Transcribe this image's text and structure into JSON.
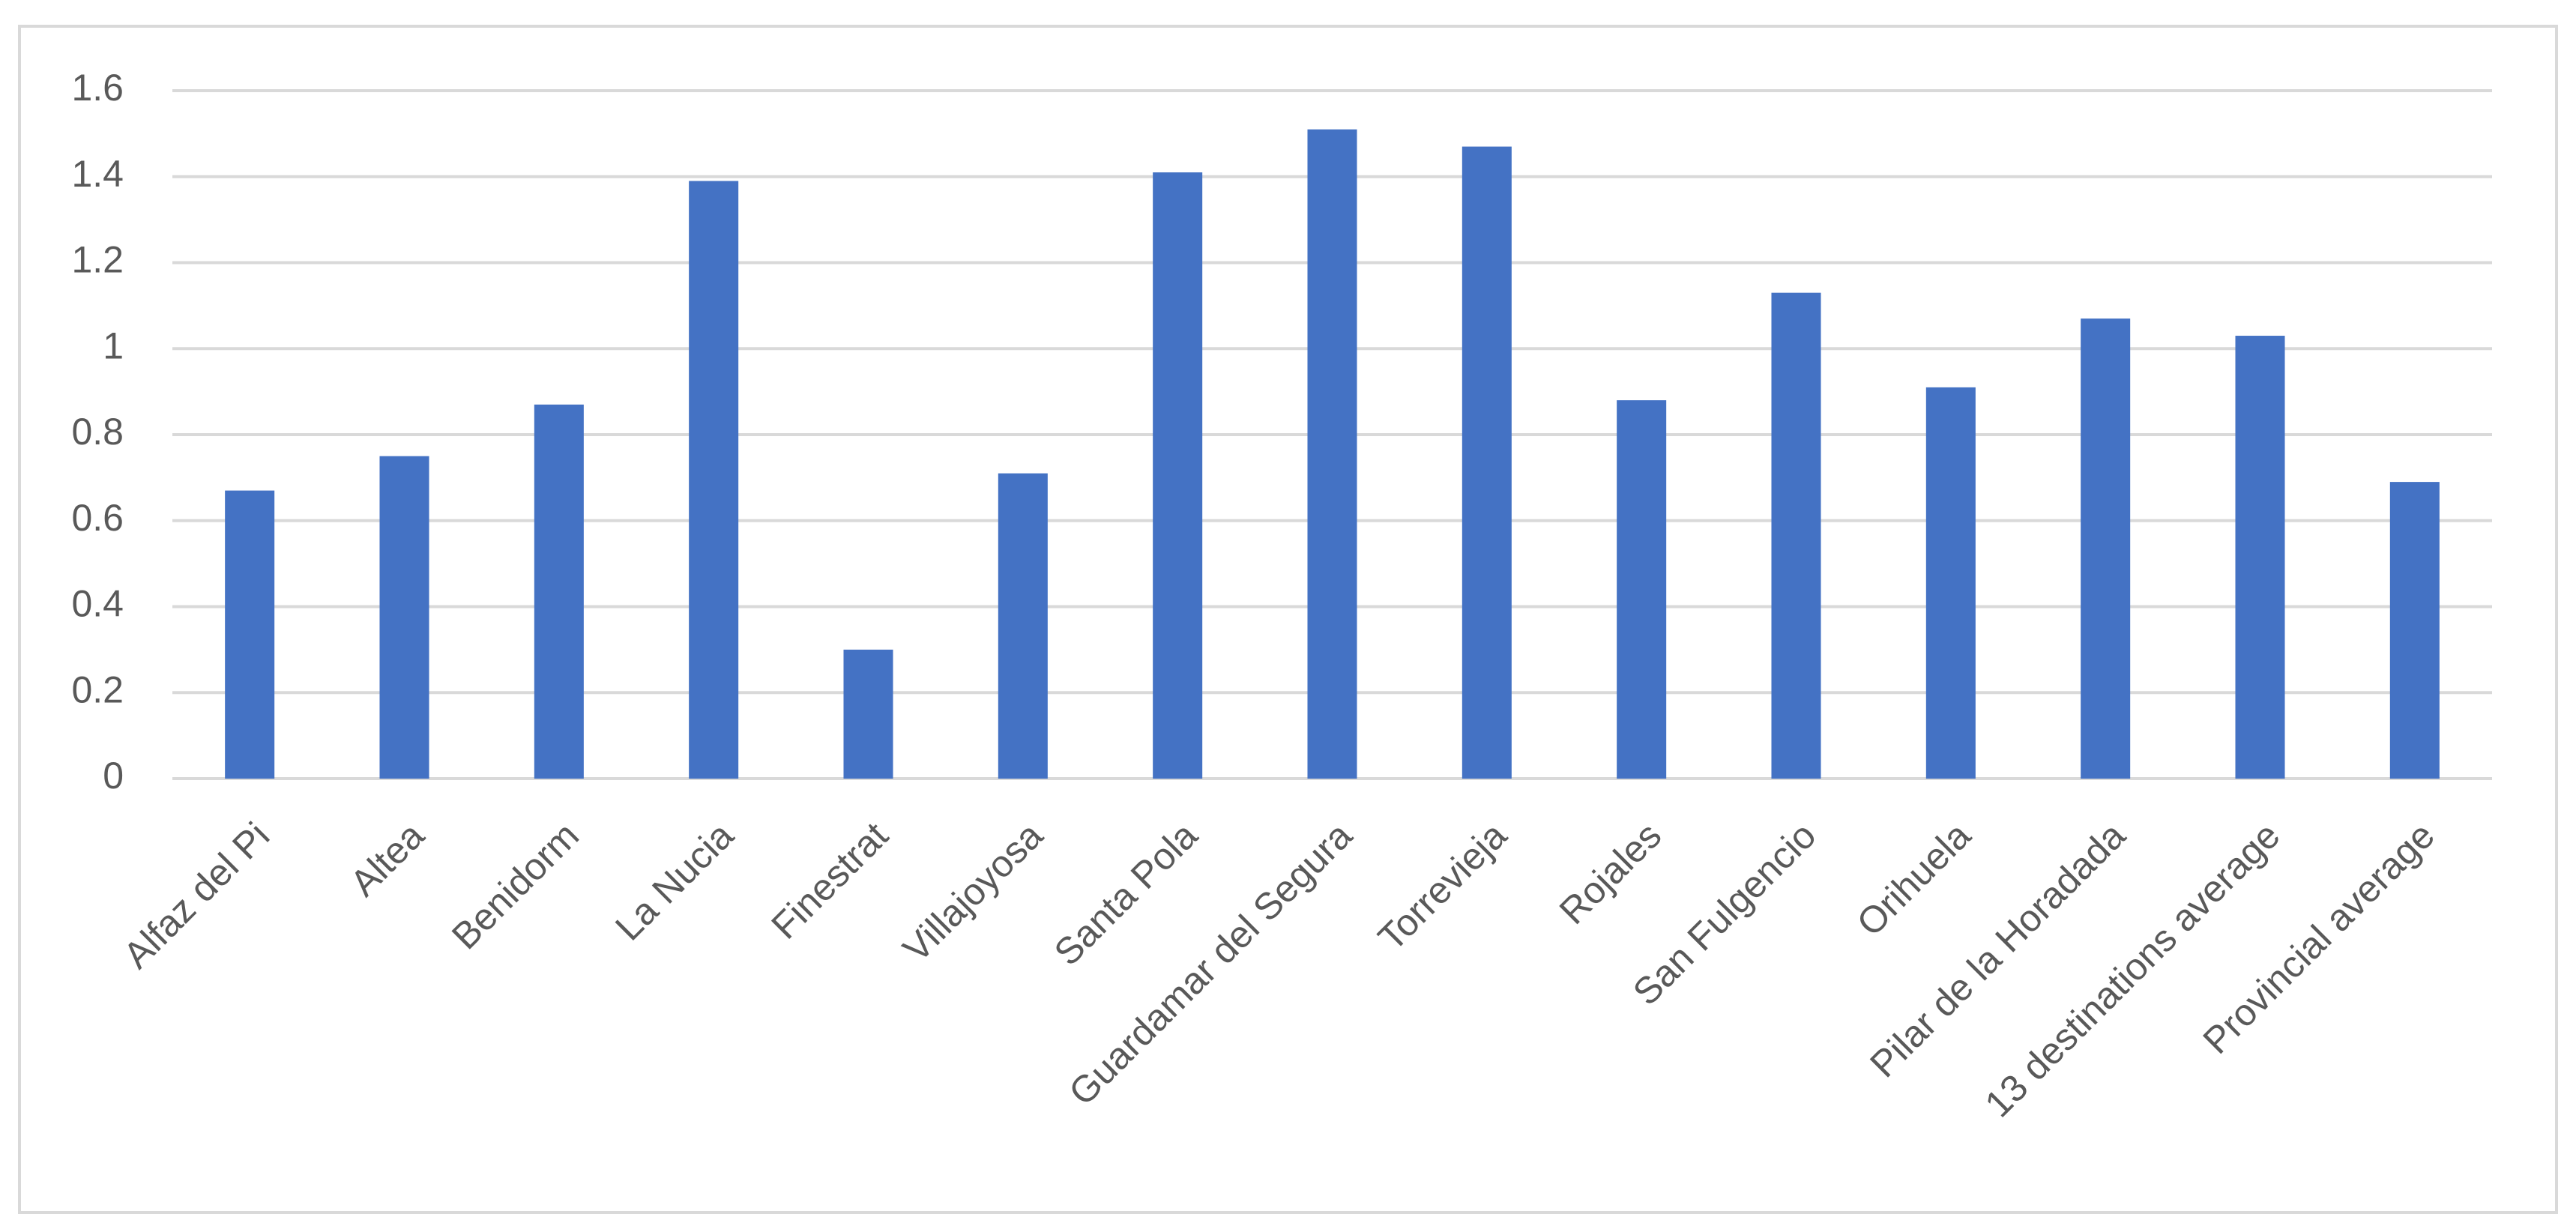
{
  "chart_data": {
    "type": "bar",
    "categories": [
      "Alfaz del Pi",
      "Altea",
      "Benidorm",
      "La Nucia",
      "Finestrat",
      "Villajoyosa",
      "Santa Pola",
      "Guardamar del Segura",
      "Torrevieja",
      "Rojales",
      "San Fulgencio",
      "Orihuela",
      "Pilar de la Horadada",
      "13 destinations average",
      "Provincial average"
    ],
    "values": [
      0.67,
      0.75,
      0.87,
      1.39,
      0.3,
      0.71,
      1.41,
      1.51,
      1.47,
      0.88,
      1.13,
      0.91,
      1.07,
      1.03,
      0.69
    ],
    "color": "#4472c4",
    "ylim": [
      0,
      1.6
    ],
    "yticks": [
      0,
      0.2,
      0.4,
      0.6,
      0.8,
      1,
      1.2,
      1.4,
      1.6
    ],
    "grid": true
  }
}
